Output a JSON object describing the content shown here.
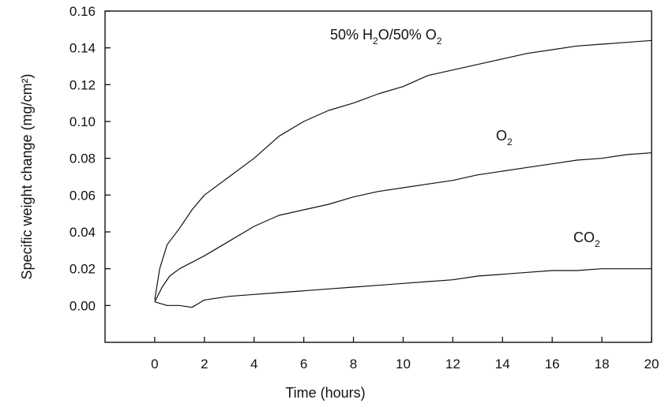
{
  "chart_data": {
    "type": "line",
    "xlabel": "Time (hours)",
    "ylabel": "Specific weight change (mg/cm²)",
    "xlim": [
      -2,
      20
    ],
    "ylim": [
      -0.02,
      0.16
    ],
    "xticks": [
      0,
      2,
      4,
      6,
      8,
      10,
      12,
      14,
      16,
      18,
      20
    ],
    "xtick_labels": [
      "0",
      "2",
      "4",
      "6",
      "8",
      "10",
      "12",
      "14",
      "16",
      "18",
      "20"
    ],
    "yticks": [
      0.0,
      0.02,
      0.04,
      0.06,
      0.08,
      0.1,
      0.12,
      0.14,
      0.16
    ],
    "ytick_labels": [
      "0.00",
      "0.02",
      "0.04",
      "0.06",
      "0.08",
      "0.10",
      "0.12",
      "0.14",
      "0.16"
    ],
    "grid": false,
    "series": [
      {
        "name": "50% H₂O/50% O₂",
        "name_parts": {
          "p1": "50% H",
          "s1": "2",
          "p2": "O/50% O",
          "s2": "2"
        },
        "x": [
          0,
          0.2,
          0.5,
          1,
          1.5,
          2,
          3,
          4,
          5,
          6,
          7,
          8,
          9,
          10,
          11,
          12,
          13,
          14,
          15,
          16,
          17,
          18,
          19,
          20
        ],
        "values": [
          0.003,
          0.02,
          0.033,
          0.042,
          0.052,
          0.06,
          0.07,
          0.08,
          0.092,
          0.1,
          0.106,
          0.11,
          0.115,
          0.119,
          0.125,
          0.128,
          0.131,
          0.134,
          0.137,
          0.139,
          0.141,
          0.142,
          0.143,
          0.144
        ]
      },
      {
        "name": "O₂",
        "name_parts": {
          "p1": "O",
          "s1": "2"
        },
        "x": [
          0,
          0.3,
          0.6,
          1,
          2,
          3,
          4,
          5,
          6,
          7,
          8,
          9,
          10,
          11,
          12,
          13,
          14,
          15,
          16,
          17,
          18,
          19,
          20
        ],
        "values": [
          0.002,
          0.01,
          0.016,
          0.02,
          0.027,
          0.035,
          0.043,
          0.049,
          0.052,
          0.055,
          0.059,
          0.062,
          0.064,
          0.066,
          0.068,
          0.071,
          0.073,
          0.075,
          0.077,
          0.079,
          0.08,
          0.082,
          0.083
        ]
      },
      {
        "name": "CO₂",
        "name_parts": {
          "p1": "CO",
          "s1": "2"
        },
        "x": [
          0,
          0.5,
          1,
          1.5,
          2,
          3,
          4,
          5,
          6,
          7,
          8,
          9,
          10,
          11,
          12,
          13,
          14,
          15,
          16,
          17,
          18,
          19,
          20
        ],
        "values": [
          0.002,
          0.0,
          0.0,
          -0.001,
          0.003,
          0.005,
          0.006,
          0.007,
          0.008,
          0.009,
          0.01,
          0.011,
          0.012,
          0.013,
          0.014,
          0.016,
          0.017,
          0.018,
          0.019,
          0.019,
          0.02,
          0.02,
          0.02
        ]
      }
    ]
  }
}
